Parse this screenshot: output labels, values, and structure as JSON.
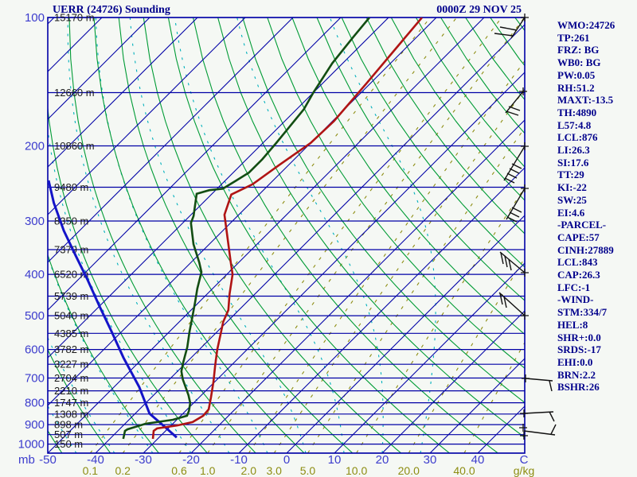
{
  "title": "UERR (24726) Sounding",
  "timestamp": "0000Z 29 NOV 25",
  "colors": {
    "background": "#f5f8f4",
    "frame": "#0000a6",
    "isotherm": "#0000a6",
    "dry_adiabat": "#009b35",
    "moist_adiabat": "#00b0bc",
    "mixing_ratio": "#8d8d12",
    "temperature": "#b01414",
    "dewpoint": "#124d12",
    "parcel": "#1414c8",
    "axis_label": "#3c3ccd",
    "height_label": "#1c1c1c",
    "panel_text": "#00008b",
    "wind_barb": "#101010"
  },
  "axes": {
    "pressure_unit": "mb",
    "pressure_ticks": [
      100,
      200,
      300,
      400,
      500,
      600,
      700,
      800,
      900,
      1000
    ],
    "temp_ticks": [
      -50,
      -40,
      -30,
      -20,
      -10,
      0,
      10,
      20,
      30,
      40
    ],
    "temp_unit": "C",
    "mixing_ratio_ticks": [
      "0.1",
      "0.2",
      "0.6",
      "1.0",
      "2.0",
      "3.0",
      "5.0",
      "10.0",
      "20.0",
      "40.0"
    ],
    "mixing_ratio_unit": "g/kg",
    "height_labels": [
      {
        "p": 100,
        "label": "15170 m"
      },
      {
        "p": 150,
        "label": "12660 m"
      },
      {
        "p": 200,
        "label": "10860 m"
      },
      {
        "p": 250,
        "label": "9480 m"
      },
      {
        "p": 300,
        "label": "8350 m"
      },
      {
        "p": 350,
        "label": "7379 m"
      },
      {
        "p": 400,
        "label": "6520 m"
      },
      {
        "p": 450,
        "label": "5739 m"
      },
      {
        "p": 500,
        "label": "5040 m"
      },
      {
        "p": 550,
        "label": "4385 m"
      },
      {
        "p": 600,
        "label": "3782 m"
      },
      {
        "p": 650,
        "label": "3227 m"
      },
      {
        "p": 700,
        "label": "2704 m"
      },
      {
        "p": 750,
        "label": "2210 m"
      },
      {
        "p": 800,
        "label": "1747 m"
      },
      {
        "p": 850,
        "label": "1308 m"
      },
      {
        "p": 900,
        "label": "898 m"
      },
      {
        "p": 950,
        "label": "507 m"
      },
      {
        "p": 1000,
        "label": "150 m"
      }
    ]
  },
  "indices": [
    "WMO:24726",
    "TP:261",
    "FRZ: BG",
    "WB0: BG",
    "PW:0.05",
    "RH:51.2",
    "MAXT:-13.5",
    "TH:4890",
    "L57:4.8",
    "LCL:876",
    "LI:26.3",
    "SI:17.6",
    "TT:29",
    "KI:-22",
    "SW:25",
    "EI:4.6",
    "-PARCEL-",
    "CAPE:57",
    "CINH:27889",
    "LCL:843",
    "CAP:26.3",
    "LFC:-1",
    "-WIND-",
    "STM:334/7",
    "HEL:8",
    "SHR+:0.0",
    "SRDS:-17",
    "EHI:0.0",
    "BRN:2.2",
    "BSHR:26"
  ],
  "chart_data": {
    "type": "skewt_log_p_sounding",
    "pressure_range_mb": [
      100,
      1050
    ],
    "temp_range_at_bottom_c": [
      -50,
      50
    ],
    "skew": "45deg",
    "isotherm_step_c": 10,
    "dry_adiabat_step_k": 10,
    "moist_adiabat_step_c": 8,
    "temperature_profile": [
      [
        100,
        -63
      ],
      [
        143,
        -60.8
      ],
      [
        175,
        -59.7
      ],
      [
        197,
        -60
      ],
      [
        222,
        -62
      ],
      [
        246,
        -63.5
      ],
      [
        260,
        -65.8
      ],
      [
        290,
        -63
      ],
      [
        340,
        -56
      ],
      [
        375,
        -51.7
      ],
      [
        400,
        -48.8
      ],
      [
        445,
        -45.3
      ],
      [
        485,
        -42.2
      ],
      [
        517,
        -40.8
      ],
      [
        552,
        -38.8
      ],
      [
        601,
        -36.2
      ],
      [
        655,
        -33.3
      ],
      [
        714,
        -30.3
      ],
      [
        778,
        -27.5
      ],
      [
        829,
        -25.5
      ],
      [
        858,
        -25.3
      ],
      [
        888,
        -26.2
      ],
      [
        904,
        -28.7
      ],
      [
        919,
        -32.3
      ],
      [
        931,
        -32.5
      ],
      [
        972,
        -31
      ]
    ],
    "dewpoint_profile": [
      [
        100,
        -74
      ],
      [
        111,
        -73.3
      ],
      [
        128,
        -72.2
      ],
      [
        150,
        -70
      ],
      [
        164,
        -68.5
      ],
      [
        181,
        -67.8
      ],
      [
        197,
        -67.2
      ],
      [
        215,
        -66.7
      ],
      [
        231,
        -66.7
      ],
      [
        241,
        -67.7
      ],
      [
        252,
        -68.8
      ],
      [
        254,
        -71.3
      ],
      [
        259,
        -73.2
      ],
      [
        292,
        -69.2
      ],
      [
        303,
        -68.3
      ],
      [
        340,
        -63.3
      ],
      [
        375,
        -58.3
      ],
      [
        395,
        -55.8
      ],
      [
        432,
        -53.2
      ],
      [
        465,
        -50.8
      ],
      [
        500,
        -48.5
      ],
      [
        545,
        -45.8
      ],
      [
        593,
        -43
      ],
      [
        625,
        -41.5
      ],
      [
        647,
        -40.5
      ],
      [
        675,
        -39.2
      ],
      [
        705,
        -37.2
      ],
      [
        735,
        -35
      ],
      [
        768,
        -32.7
      ],
      [
        801,
        -30.7
      ],
      [
        836,
        -29.3
      ],
      [
        858,
        -28.7
      ],
      [
        877,
        -30.8
      ],
      [
        896,
        -35.7
      ],
      [
        923,
        -38.3
      ],
      [
        931,
        -38.5
      ],
      [
        972,
        -37.2
      ]
    ],
    "parcel_profile": [
      [
        241,
        -107
      ],
      [
        272,
        -101.2
      ],
      [
        316,
        -93.3
      ],
      [
        362,
        -85.5
      ],
      [
        412,
        -78
      ],
      [
        475,
        -70
      ],
      [
        546,
        -62
      ],
      [
        627,
        -54.2
      ],
      [
        735,
        -44.7
      ],
      [
        848,
        -37
      ],
      [
        908,
        -31.3
      ],
      [
        965,
        -26.3
      ]
    ],
    "wind_barbs": [
      {
        "level_mb": 100,
        "cross": [
          659,
          22
        ],
        "lines": [
          [
            [
              659,
              22
            ],
            [
              642,
              48
            ]
          ],
          [
            [
              644,
              45
            ],
            [
              621,
              42
            ]
          ],
          [
            [
              649,
              38
            ],
            [
              628,
              34
            ]
          ]
        ]
      },
      {
        "level_mb": 150,
        "cross": [
          657,
          115
        ],
        "lines": [
          [
            [
              657,
              115
            ],
            [
              635,
              142
            ]
          ],
          [
            [
              636,
              140
            ],
            [
              651,
              145
            ]
          ],
          [
            [
              639,
              134
            ],
            [
              653,
              139
            ]
          ]
        ]
      },
      {
        "level_mb": 200,
        "cross": [
          659,
          184
        ],
        "lines": [
          [
            [
              659,
              184
            ],
            [
              633,
              227
            ]
          ],
          [
            [
              634,
              224
            ],
            [
              646,
              230
            ]
          ],
          [
            [
              637,
              218
            ],
            [
              649,
              224
            ]
          ],
          [
            [
              640,
              212
            ],
            [
              652,
              218
            ]
          ],
          [
            [
              643,
              206
            ],
            [
              655,
              212
            ]
          ]
        ]
      },
      {
        "level_mb": 250,
        "cross": [
          659,
          237
        ],
        "lines": [
          [
            [
              659,
              237
            ],
            [
              636,
              276
            ]
          ],
          [
            [
              637,
              273
            ],
            [
              649,
              279
            ]
          ],
          [
            [
              640,
              267
            ],
            [
              652,
              273
            ]
          ],
          [
            [
              643,
              261
            ],
            [
              655,
              267
            ]
          ]
        ]
      },
      {
        "level_mb": 400,
        "cross": [
          659,
          343
        ],
        "lines": [
          [
            [
              659,
              343
            ],
            [
              628,
              317
            ]
          ],
          [
            [
              629,
              318
            ],
            [
              632,
              332
            ]
          ],
          [
            [
              634,
              322
            ],
            [
              637,
              336
            ]
          ],
          [
            [
              639,
              326
            ],
            [
              642,
              340
            ]
          ]
        ]
      },
      {
        "level_mb": 500,
        "cross": [
          659,
          397
        ],
        "lines": [
          [
            [
              659,
              397
            ],
            [
              627,
              368
            ]
          ],
          [
            [
              628,
              369
            ],
            [
              631,
              383
            ]
          ],
          [
            [
              633,
              373
            ],
            [
              636,
              387
            ]
          ]
        ]
      },
      {
        "level_mb": 700,
        "cross": [
          660,
          476
        ],
        "lines": [
          [
            [
              660,
              476
            ],
            [
              694,
              479
            ]
          ],
          [
            [
              690,
              479
            ],
            [
              693,
              492
            ]
          ]
        ]
      },
      {
        "level_mb": 850,
        "cross": [
          658,
          520
        ],
        "lines": [
          [
            [
              658,
              520
            ],
            [
              695,
              518
            ]
          ],
          [
            [
              690,
              518
            ],
            [
              696,
              530
            ]
          ]
        ]
      },
      {
        "level_mb": 925,
        "cross": [
          657,
          538
        ],
        "cross2": [
          658,
          548
        ],
        "lines": [
          [
            [
              658,
              542
            ],
            [
              697,
              547
            ]
          ],
          [
            [
              692,
              546
            ],
            [
              698,
              534
            ]
          ]
        ]
      }
    ]
  }
}
